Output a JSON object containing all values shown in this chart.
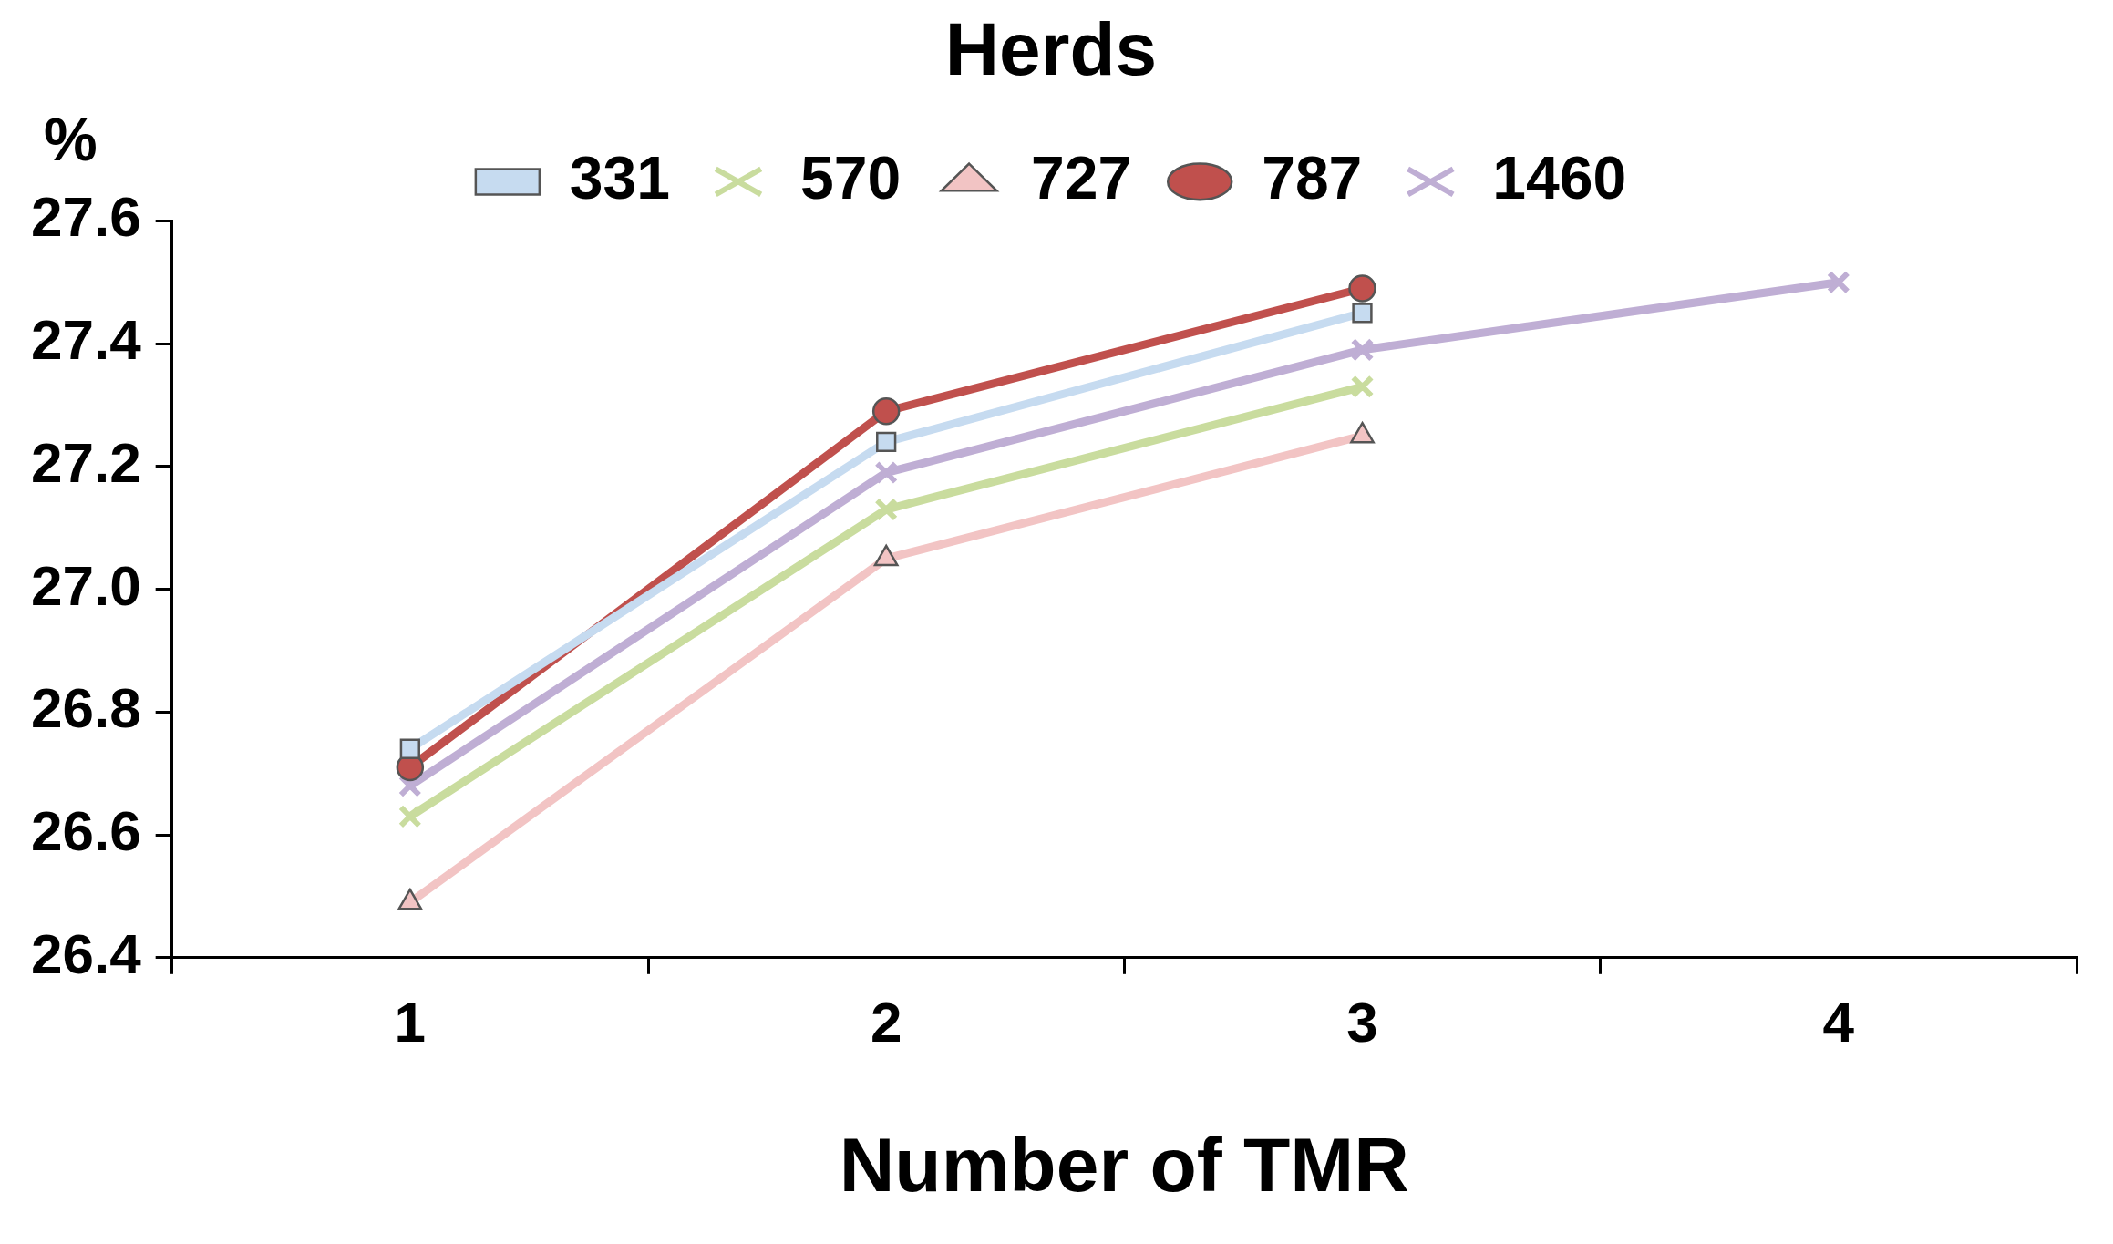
{
  "chart_data": {
    "type": "line",
    "legend_title": "Herds",
    "xlabel": "Number of TMR",
    "ylabel": "%",
    "categories": [
      "1",
      "2",
      "3",
      "4"
    ],
    "series": [
      {
        "name": "331",
        "color": "#c6dbf0",
        "marker": "square",
        "values": [
          26.74,
          27.24,
          27.45,
          null
        ]
      },
      {
        "name": "570",
        "color": "#c9dc9e",
        "marker": "cross",
        "values": [
          26.63,
          27.13,
          27.33,
          null
        ]
      },
      {
        "name": "727",
        "color": "#f2c4c4",
        "marker": "triangle",
        "values": [
          26.49,
          27.05,
          27.25,
          null
        ]
      },
      {
        "name": "787",
        "color": "#c0504d",
        "marker": "circle",
        "values": [
          26.71,
          27.29,
          27.49,
          null
        ]
      },
      {
        "name": "1460",
        "color": "#bfaed4",
        "marker": "cross",
        "values": [
          26.68,
          27.19,
          27.39,
          27.5
        ]
      }
    ],
    "ylim": [
      26.4,
      27.6
    ],
    "yticks": [
      26.4,
      26.6,
      26.8,
      {
        "value": 27,
        "label": "27.0"
      },
      27.2,
      27.4,
      27.6
    ],
    "grid": false,
    "legend": "top",
    "line_style": "solid"
  }
}
